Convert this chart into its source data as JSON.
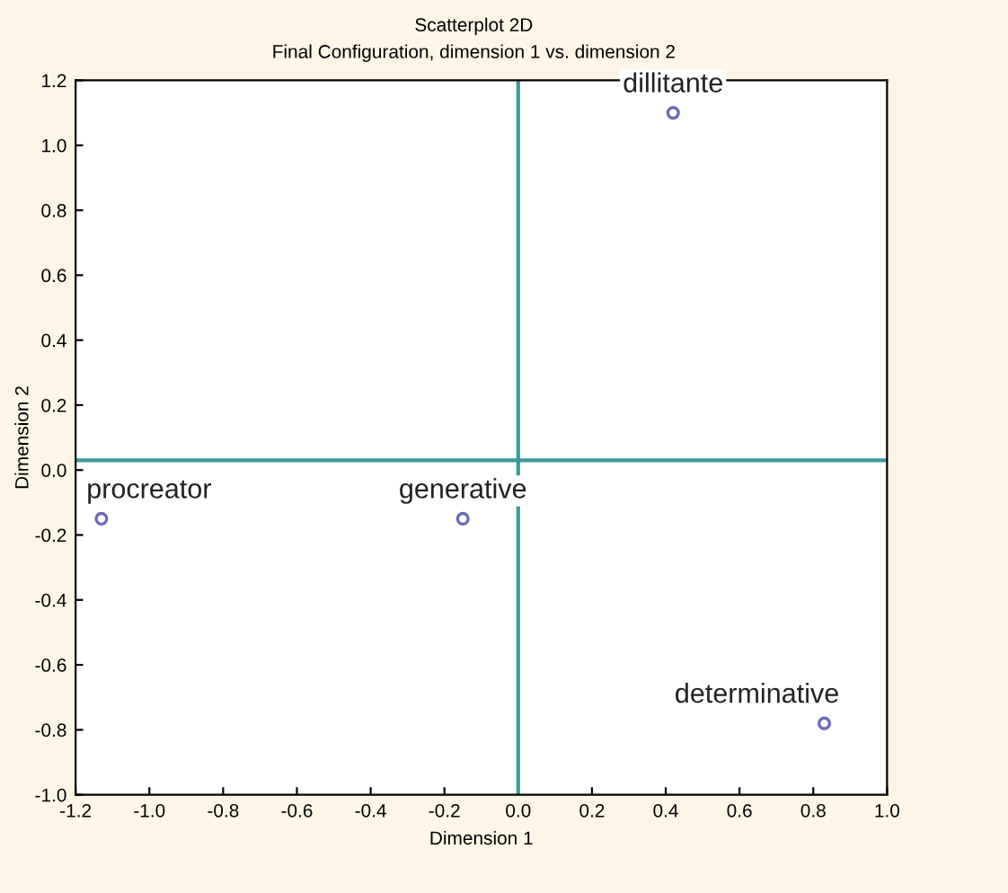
{
  "chart_data": {
    "type": "scatter",
    "title": "Scatterplot 2D",
    "subtitle": "Final Configuration, dimension 1 vs. dimension 2",
    "xlabel": "Dimension 1",
    "ylabel": "Dimension 2",
    "x": [
      -1.13,
      -0.15,
      0.42,
      0.83
    ],
    "series": [
      {
        "color": "#6a6ab8",
        "values": [
          -0.15,
          -0.15,
          1.1,
          -0.78
        ]
      }
    ],
    "marker": "circle",
    "annotations": [
      {
        "text": "procreator",
        "x": -1.13,
        "y": -0.15
      },
      {
        "text": "generative",
        "x": -0.15,
        "y": -0.15
      },
      {
        "text": "dillitante",
        "x": 0.42,
        "y": 1.1
      },
      {
        "text": "determinative",
        "x": 0.83,
        "y": -0.78
      }
    ],
    "ref_lines": [
      {
        "axis": "x",
        "value": 0.0,
        "color": "#3a9a9a"
      },
      {
        "axis": "y",
        "value": 0.03,
        "color": "#3a9a9a"
      }
    ],
    "xlim": [
      -1.2,
      1.0
    ],
    "ylim": [
      -1.0,
      1.2
    ],
    "xticks": [
      -1.2,
      {
        "value": -1.0,
        "label": "-1.0"
      },
      -0.8,
      -0.6,
      -0.4,
      -0.2,
      {
        "value": 0.0,
        "label": "0.0"
      },
      0.2,
      0.4,
      0.6,
      0.8,
      {
        "value": 1.0,
        "label": "1.0"
      }
    ],
    "yticks": [
      {
        "value": -1.0,
        "label": "-1.0"
      },
      -0.8,
      -0.6,
      -0.4,
      -0.2,
      {
        "value": 0.0,
        "label": "0.0"
      },
      0.2,
      0.4,
      0.6,
      0.8,
      {
        "value": 1.0,
        "label": "1.0"
      },
      1.2
    ],
    "grid": false,
    "legend": false
  }
}
